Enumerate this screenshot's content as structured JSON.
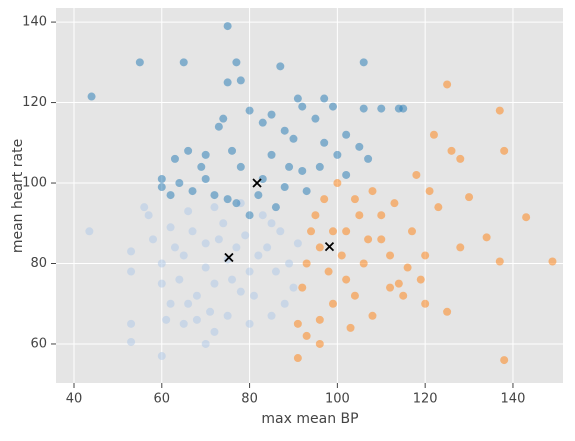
{
  "chart_data": {
    "type": "scatter",
    "xlabel": "max mean BP",
    "ylabel": "mean heart rate",
    "xlim": [
      35.9,
      151.4
    ],
    "ylim": [
      50.3,
      143.5
    ],
    "xticks": [
      40,
      60,
      80,
      100,
      120,
      140
    ],
    "yticks": [
      60,
      80,
      100,
      120,
      140
    ],
    "grid": true,
    "background": "#e5e5e5",
    "series": [
      {
        "color": "#aec7e8",
        "marker": "circle",
        "x": [
          43.5,
          53,
          53,
          53,
          53,
          60,
          57,
          58,
          60,
          62,
          65,
          70,
          72,
          75,
          80,
          85,
          88,
          90,
          86,
          84,
          87,
          83,
          78,
          72,
          66,
          62,
          60,
          65,
          70,
          75,
          80,
          78,
          72,
          68,
          64,
          67,
          74,
          79,
          82,
          77,
          70,
          63,
          56,
          68,
          76,
          73,
          81,
          85,
          71,
          66,
          89,
          91,
          61
        ],
        "values": [
          88,
          83,
          78,
          65,
          60.5,
          57,
          92,
          86,
          75,
          70,
          65,
          60,
          63,
          67,
          65,
          67,
          70,
          74,
          78,
          84,
          88,
          92,
          95,
          94,
          93,
          89,
          80,
          82,
          85,
          81,
          78,
          73,
          75,
          72,
          76,
          88,
          90,
          87,
          82,
          84,
          79,
          84,
          94,
          66,
          76,
          86,
          72,
          90,
          68,
          70,
          80,
          85,
          66
        ]
      },
      {
        "color": "#1f77b4",
        "marker": "circle",
        "x": [
          44,
          55,
          65,
          75,
          75,
          77,
          78,
          87,
          85,
          91,
          92,
          97,
          99,
          106,
          106,
          110,
          114,
          115,
          60,
          60,
          62,
          63,
          66,
          70,
          73,
          74,
          80,
          83,
          88,
          90,
          95,
          102,
          105,
          100,
          96,
          92,
          85,
          78,
          70,
          67,
          72,
          77,
          82,
          88,
          93,
          86,
          80,
          75,
          69,
          102,
          107,
          64,
          83,
          89,
          76,
          97
        ],
        "values": [
          121.5,
          130,
          130,
          139,
          125,
          130,
          125.5,
          129,
          117,
          121,
          119,
          121,
          119,
          130,
          118.5,
          118.5,
          118.5,
          118.5,
          101,
          99,
          97,
          106,
          108,
          107,
          114,
          116,
          118,
          115,
          113,
          111,
          116,
          112,
          109,
          107,
          104,
          103,
          107,
          104,
          101,
          98,
          97,
          95,
          97,
          99,
          98,
          94,
          92,
          96,
          104,
          102,
          106,
          100,
          101,
          104,
          108,
          110
        ]
      },
      {
        "color": "#ff7f0e",
        "marker": "circle",
        "x": [
          149,
          143,
          138,
          137,
          138,
          137,
          134,
          130,
          128,
          125,
          126,
          122,
          123,
          121,
          118,
          116,
          114,
          120,
          125,
          120,
          115,
          112,
          110,
          105,
          108,
          106,
          102,
          99,
          96,
          93,
          91,
          96,
          103,
          108,
          104,
          100,
          99,
          96,
          93,
          95,
          102,
          98,
          92,
          94,
          110,
          113,
          104,
          112,
          117,
          97,
          101,
          107,
          128,
          119,
          91
        ],
        "values": [
          80.5,
          91.5,
          108,
          118,
          56,
          80.5,
          86.5,
          96.5,
          106,
          124.5,
          108,
          112,
          94,
          98,
          102,
          79,
          75,
          82,
          68,
          70,
          72,
          82,
          86,
          92,
          98,
          80,
          76,
          70,
          66,
          62,
          56.5,
          60,
          64,
          67,
          72,
          100,
          88,
          84,
          80,
          92,
          88,
          78,
          74,
          88,
          92,
          95,
          96,
          74,
          88,
          96,
          82,
          86,
          84,
          76,
          65
        ]
      },
      {
        "color": "#000000",
        "marker": "x",
        "x": [
          75.3,
          81.7,
          98.2
        ],
        "values": [
          81.5,
          100,
          84.2
        ]
      }
    ]
  }
}
